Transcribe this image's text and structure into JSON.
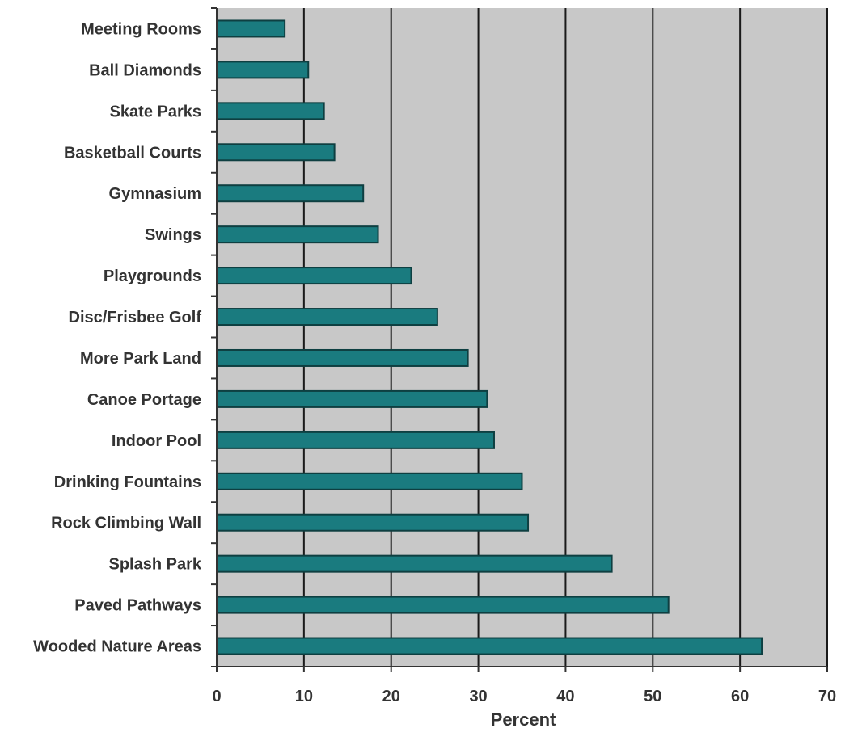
{
  "chart_data": {
    "type": "bar",
    "orientation": "horizontal",
    "categories": [
      "Meeting Rooms",
      "Ball Diamonds",
      "Skate Parks",
      "Basketball Courts",
      "Gymnasium",
      "Swings",
      "Playgrounds",
      "Disc/Frisbee Golf",
      "More Park Land",
      "Canoe Portage",
      "Indoor Pool",
      "Drinking Fountains",
      "Rock Climbing Wall",
      "Splash Park",
      "Paved Pathways",
      "Wooded Nature Areas"
    ],
    "values": [
      7.8,
      10.5,
      12.3,
      13.5,
      16.8,
      18.5,
      22.3,
      25.3,
      28.8,
      31,
      31.8,
      35,
      35.7,
      45.3,
      51.8,
      62.5
    ],
    "title": "",
    "xlabel": "Percent",
    "ylabel": "",
    "xlim": [
      0,
      70
    ],
    "xticks": [
      "0",
      "10",
      "20",
      "30",
      "40",
      "50",
      "60",
      "70"
    ],
    "grid": "vertical",
    "bar_color": "#1a7b7f",
    "background_color": "#c8c8c8"
  }
}
